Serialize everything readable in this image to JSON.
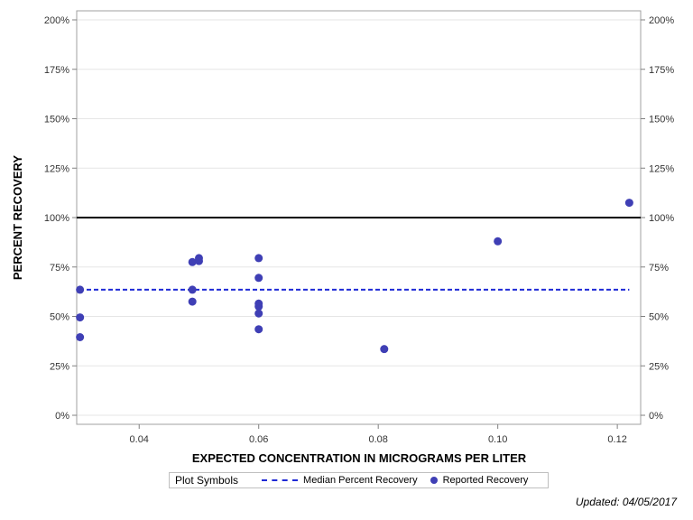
{
  "chart_data": {
    "type": "scatter",
    "xlabel": "EXPECTED CONCENTRATION IN MICROGRAMS PER LITER",
    "ylabel": "PERCENT RECOVERY",
    "xlim": [
      0.03,
      0.123
    ],
    "ylim": [
      0,
      200
    ],
    "x_ticks": [
      {
        "value": 0.04,
        "label": "0.04"
      },
      {
        "value": 0.06,
        "label": "0.06"
      },
      {
        "value": 0.08,
        "label": "0.08"
      },
      {
        "value": 0.1,
        "label": "0.10"
      },
      {
        "value": 0.12,
        "label": "0.12"
      }
    ],
    "y_ticks": [
      {
        "value": 0,
        "label": "0%"
      },
      {
        "value": 25,
        "label": "25%"
      },
      {
        "value": 50,
        "label": "50%"
      },
      {
        "value": 75,
        "label": "75%"
      },
      {
        "value": 100,
        "label": "100%"
      },
      {
        "value": 125,
        "label": "125%"
      },
      {
        "value": 150,
        "label": "150%"
      },
      {
        "value": 175,
        "label": "175%"
      },
      {
        "value": 200,
        "label": "200%"
      }
    ],
    "reference_line": {
      "y": 100,
      "color": "#000000"
    },
    "series": [
      {
        "name": "Reported Recovery",
        "color": "#3f3fb5",
        "points": [
          {
            "x": 0.0301,
            "y": 63.5
          },
          {
            "x": 0.0301,
            "y": 49.5
          },
          {
            "x": 0.0301,
            "y": 39.5
          },
          {
            "x": 0.0489,
            "y": 77.5
          },
          {
            "x": 0.0489,
            "y": 63.5
          },
          {
            "x": 0.0489,
            "y": 57.5
          },
          {
            "x": 0.05,
            "y": 79.5
          },
          {
            "x": 0.05,
            "y": 78.0
          },
          {
            "x": 0.06,
            "y": 79.5
          },
          {
            "x": 0.06,
            "y": 69.5
          },
          {
            "x": 0.06,
            "y": 56.5
          },
          {
            "x": 0.06,
            "y": 55.0
          },
          {
            "x": 0.06,
            "y": 51.5
          },
          {
            "x": 0.06,
            "y": 43.5
          },
          {
            "x": 0.081,
            "y": 33.5
          },
          {
            "x": 0.1,
            "y": 88.0
          },
          {
            "x": 0.122,
            "y": 107.5
          }
        ]
      },
      {
        "name": "Median Percent Recovery",
        "color": "#1f2ad6",
        "style": "dashed",
        "y": 63.5,
        "x_range": [
          0.03,
          0.122
        ]
      }
    ],
    "legend": {
      "title": "Plot Symbols",
      "placement": "bottom",
      "items": [
        {
          "label": "Median Percent Recovery",
          "color": "#1f2ad6"
        },
        {
          "label": "Reported Recovery",
          "color": "#3f3fb5"
        }
      ]
    },
    "grid": true
  },
  "footnote": "Updated: 04/05/2017"
}
